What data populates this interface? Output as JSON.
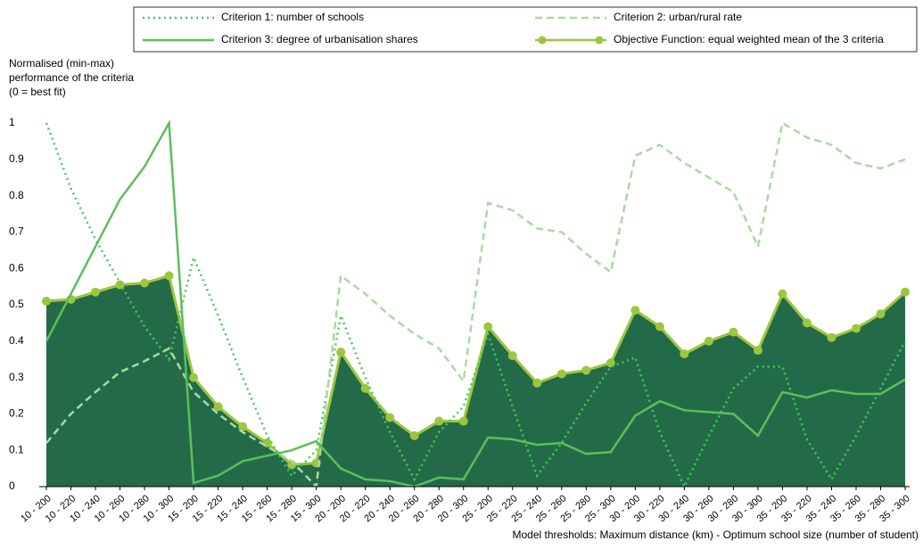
{
  "chart_data": {
    "type": "line",
    "ylabel": [
      "Normalised (min-max)",
      "performance of the criteria",
      "(0 = best fit)"
    ],
    "xlabel": "Model thresholds: Maximum distance (km) - Optimum school size (number of student)",
    "categories": [
      "10 - 200",
      "10 - 220",
      "10 - 240",
      "10 - 260",
      "10 - 280",
      "10 - 300",
      "15 - 200",
      "15 - 220",
      "15 - 240",
      "15 - 260",
      "15 - 280",
      "15 - 300",
      "20 - 200",
      "20 - 220",
      "20 - 240",
      "20 - 260",
      "20 - 280",
      "20 - 300",
      "25 - 200",
      "25 - 220",
      "25 - 240",
      "25 - 260",
      "25 - 280",
      "25 - 300",
      "30 - 200",
      "30 - 220",
      "30 - 240",
      "30 - 260",
      "30 - 280",
      "30 - 300",
      "35 - 200",
      "35 - 220",
      "35 - 240",
      "35 - 260",
      "35 - 280",
      "35 - 300"
    ],
    "series": [
      {
        "name": "Criterion 1: number of schools",
        "color": "#3fcc55",
        "style": "dotted",
        "values": [
          1.0,
          0.82,
          0.68,
          0.56,
          0.44,
          0.35,
          0.63,
          0.47,
          0.3,
          0.14,
          0.03,
          0.1,
          0.47,
          0.3,
          0.15,
          0.02,
          0.15,
          0.22,
          0.42,
          0.22,
          0.03,
          0.12,
          0.23,
          0.33,
          0.355,
          0.15,
          0.0,
          0.14,
          0.27,
          0.33,
          0.33,
          0.13,
          0.02,
          0.14,
          0.27,
          0.4
        ]
      },
      {
        "name": "Criterion 2: urban/rural rate",
        "color": "#a9d9a0",
        "style": "dashed",
        "values": [
          0.12,
          0.2,
          0.26,
          0.315,
          0.345,
          0.38,
          0.26,
          0.2,
          0.15,
          0.11,
          0.07,
          0.0,
          0.58,
          0.53,
          0.47,
          0.42,
          0.38,
          0.29,
          0.78,
          0.76,
          0.71,
          0.7,
          0.64,
          0.59,
          0.91,
          0.94,
          0.89,
          0.85,
          0.81,
          0.66,
          1.0,
          0.96,
          0.94,
          0.89,
          0.875,
          0.9
        ]
      },
      {
        "name": "Criterion 3: degree of urbanisation shares",
        "color": "#5cbf5c",
        "style": "solid",
        "values": [
          0.4,
          0.53,
          0.66,
          0.79,
          0.88,
          1.0,
          0.01,
          0.03,
          0.07,
          0.085,
          0.1,
          0.125,
          0.05,
          0.02,
          0.015,
          0.0,
          0.025,
          0.02,
          0.135,
          0.13,
          0.115,
          0.12,
          0.09,
          0.095,
          0.195,
          0.235,
          0.21,
          0.205,
          0.2,
          0.14,
          0.26,
          0.245,
          0.265,
          0.255,
          0.255,
          0.295
        ]
      },
      {
        "name": "Objective Function: equal weighted mean of the 3 criteria",
        "color": "#9cc63e",
        "style": "solid",
        "markers": true,
        "fill": "#236b48",
        "values": [
          0.51,
          0.515,
          0.535,
          0.555,
          0.56,
          0.58,
          0.3,
          0.22,
          0.165,
          0.12,
          0.06,
          0.065,
          0.37,
          0.27,
          0.19,
          0.14,
          0.18,
          0.18,
          0.44,
          0.36,
          0.285,
          0.31,
          0.32,
          0.34,
          0.485,
          0.44,
          0.365,
          0.4,
          0.425,
          0.375,
          0.53,
          0.45,
          0.41,
          0.435,
          0.475,
          0.535
        ]
      }
    ],
    "ylim": [
      0,
      1
    ],
    "yticks": [
      0,
      0.1,
      0.2,
      0.3,
      0.4,
      0.5,
      0.6,
      0.7,
      0.8,
      0.9,
      1
    ],
    "grid": false
  }
}
